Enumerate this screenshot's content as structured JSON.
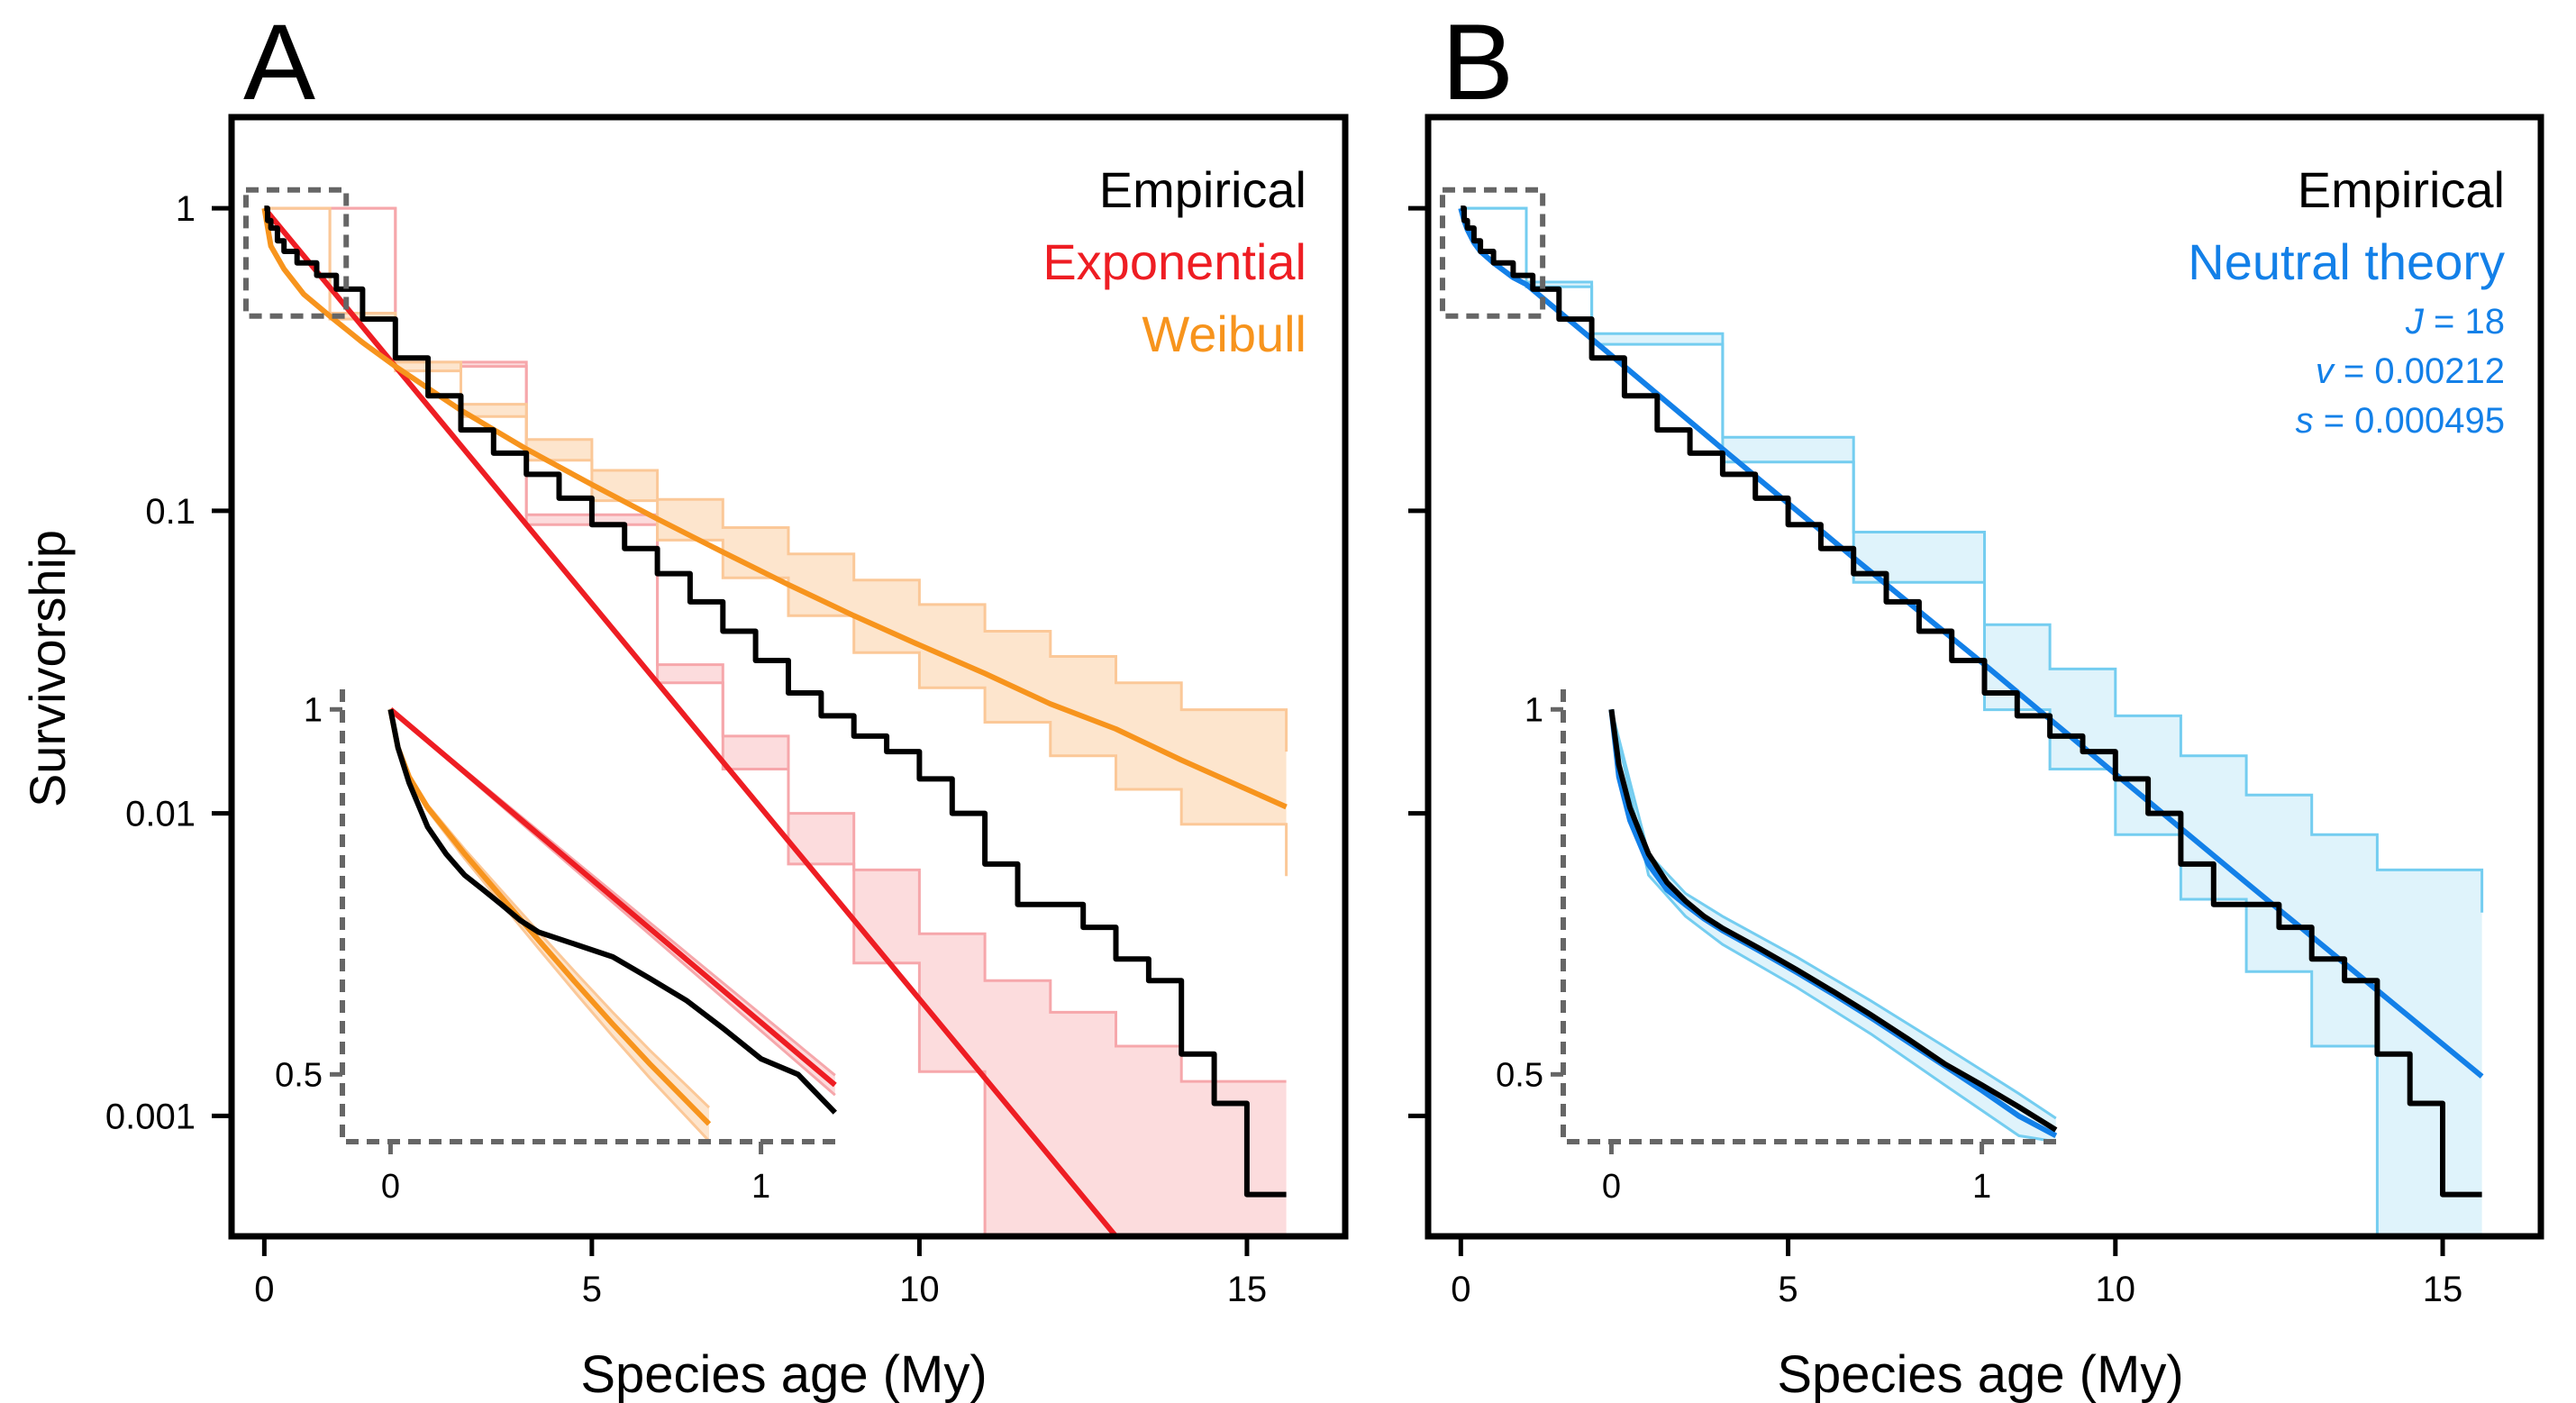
{
  "panels": {
    "a": {
      "letter": "A"
    },
    "b": {
      "letter": "B"
    }
  },
  "colors": {
    "empirical": "#000000",
    "exponential": "#ee1d23",
    "exponential_band": "#fcdcdd",
    "exponential_band_edge": "#f6a7ab",
    "weibull": "#f7941d",
    "weibull_band": "#fde5cd",
    "weibull_band_edge": "#fbc898",
    "neutral": "#1380e8",
    "neutral_band": "#dff3fb",
    "neutral_band_edge": "#74cdf0",
    "inset_frame": "#666666"
  },
  "chart_data": [
    {
      "panel": "A",
      "type": "line",
      "xlabel": "Species age (My)",
      "ylabel": "Survivorship",
      "yscale": "log",
      "xlim": [
        -0.5,
        16.5
      ],
      "ylim": [
        0.0004,
        2.0
      ],
      "xticks": [
        0,
        5,
        10,
        15
      ],
      "xtick_labels": [
        "0",
        "5",
        "10",
        "15"
      ],
      "yticks": [
        1,
        0.1,
        0.01,
        0.001
      ],
      "ytick_labels": [
        "1",
        "0.1",
        "0.01",
        "0.001"
      ],
      "legend": {
        "placement": "top-right",
        "entries": [
          "Empirical",
          "Exponential",
          "Weibull"
        ]
      },
      "series": [
        {
          "name": "Empirical",
          "style": "step",
          "color_key": "empirical",
          "x": [
            0,
            0.05,
            0.1,
            0.2,
            0.3,
            0.5,
            0.8,
            1.1,
            1.5,
            2.0,
            2.5,
            3.0,
            3.5,
            4.0,
            4.5,
            5.0,
            5.5,
            6.0,
            6.5,
            7.0,
            7.5,
            8.0,
            8.5,
            9.0,
            9.5,
            10.0,
            10.5,
            11.0,
            11.5,
            12.0,
            12.5,
            13.0,
            13.5,
            14.0,
            14.5,
            15.0,
            15.6
          ],
          "y": [
            1.0,
            0.91,
            0.86,
            0.78,
            0.72,
            0.66,
            0.6,
            0.54,
            0.43,
            0.32,
            0.24,
            0.185,
            0.155,
            0.132,
            0.11,
            0.09,
            0.075,
            0.062,
            0.05,
            0.04,
            0.032,
            0.025,
            0.021,
            0.018,
            0.016,
            0.013,
            0.01,
            0.0068,
            0.005,
            0.005,
            0.0042,
            0.0033,
            0.0028,
            0.0016,
            0.0011,
            0.00055,
            0.00055
          ]
        },
        {
          "name": "Exponential",
          "style": "line",
          "color_key": "exponential",
          "x": [
            0,
            13.0
          ],
          "y": [
            1.0,
            0.0004
          ]
        },
        {
          "name": "Exponential band",
          "style": "band",
          "color_key": "exponential_band",
          "x": [
            0,
            2,
            4,
            6,
            7,
            8,
            9,
            10,
            11,
            12,
            13,
            14,
            15.6
          ],
          "lower": [
            1.0,
            0.3,
            0.09,
            0.027,
            0.014,
            0.0068,
            0.0032,
            0.0014,
            0.0004,
            0.0004,
            0.0004,
            0.0004,
            0.0004
          ],
          "upper": [
            1.0,
            0.31,
            0.097,
            0.031,
            0.018,
            0.01,
            0.0065,
            0.004,
            0.0028,
            0.0022,
            0.0017,
            0.0013,
            0.0013
          ]
        },
        {
          "name": "Weibull",
          "style": "line",
          "color_key": "weibull",
          "x": [
            0,
            0.1,
            0.3,
            0.6,
            1.0,
            1.5,
            2.0,
            3.0,
            4.0,
            5.0,
            6.0,
            7.0,
            8.0,
            9.0,
            10.0,
            11.0,
            12.0,
            13.0,
            14.0,
            15.6
          ],
          "y": [
            1.0,
            0.75,
            0.63,
            0.52,
            0.44,
            0.36,
            0.3,
            0.215,
            0.16,
            0.122,
            0.094,
            0.073,
            0.057,
            0.045,
            0.036,
            0.029,
            0.023,
            0.019,
            0.015,
            0.0105
          ]
        },
        {
          "name": "Weibull band",
          "style": "band",
          "color_key": "weibull_band",
          "x": [
            0,
            1.0,
            2.0,
            3.0,
            4.0,
            5.0,
            6.0,
            7.0,
            8.0,
            9.0,
            10.0,
            11.0,
            12.0,
            13.0,
            14.0,
            15.6
          ],
          "lower": [
            1.0,
            0.43,
            0.29,
            0.205,
            0.147,
            0.108,
            0.08,
            0.06,
            0.045,
            0.034,
            0.026,
            0.02,
            0.0155,
            0.012,
            0.0092,
            0.0062
          ],
          "upper": [
            1.0,
            0.45,
            0.31,
            0.225,
            0.172,
            0.136,
            0.109,
            0.088,
            0.072,
            0.059,
            0.049,
            0.04,
            0.033,
            0.027,
            0.022,
            0.016
          ]
        }
      ],
      "inset": {
        "xlim": [
          -0.13,
          1.22
        ],
        "ylim": [
          0.44,
          1.03
        ],
        "xticks": [
          0,
          1
        ],
        "xtick_labels": [
          "0",
          "1"
        ],
        "yticks": [
          1,
          0.5
        ],
        "ytick_labels": [
          "1",
          "0.5"
        ],
        "series": [
          {
            "name": "Empirical",
            "color_key": "empirical",
            "x": [
              0,
              0.02,
              0.05,
              0.1,
              0.15,
              0.2,
              0.25,
              0.3,
              0.35,
              0.4,
              0.5,
              0.6,
              0.7,
              0.8,
              0.9,
              1.0,
              1.1,
              1.2
            ],
            "y": [
              1.0,
              0.93,
              0.87,
              0.8,
              0.76,
              0.73,
              0.71,
              0.69,
              0.67,
              0.655,
              0.64,
              0.625,
              0.6,
              0.575,
              0.545,
              0.515,
              0.5,
              0.465
            ]
          },
          {
            "name": "Exponential",
            "color_key": "exponential",
            "x": [
              0,
              1.2
            ],
            "y": [
              1.0,
              0.49
            ]
          },
          {
            "name": "Weibull",
            "color_key": "weibull",
            "x": [
              0,
              0.02,
              0.05,
              0.1,
              0.2,
              0.3,
              0.4,
              0.5,
              0.6,
              0.7,
              0.8,
              0.86
            ],
            "y": [
              1.0,
              0.93,
              0.88,
              0.83,
              0.76,
              0.7,
              0.645,
              0.595,
              0.55,
              0.51,
              0.475,
              0.455
            ]
          }
        ]
      }
    },
    {
      "panel": "B",
      "type": "line",
      "xlabel": "Species age (My)",
      "ylabel": "",
      "yscale": "log",
      "xlim": [
        -0.5,
        16.5
      ],
      "ylim": [
        0.0004,
        2.0
      ],
      "xticks": [
        0,
        5,
        10,
        15
      ],
      "xtick_labels": [
        "0",
        "5",
        "10",
        "15"
      ],
      "yticks": [
        1,
        0.1,
        0.01,
        0.001
      ],
      "ytick_labels": [
        "",
        "",
        "",
        ""
      ],
      "legend": {
        "placement": "top-right",
        "entries": [
          "Empirical",
          "Neutral theory"
        ]
      },
      "parameters": [
        {
          "symbol": "J",
          "value": " = 18"
        },
        {
          "symbol": "v",
          "value": " = 0.00212"
        },
        {
          "symbol": "s",
          "value": " = 0.000495"
        }
      ],
      "series": [
        {
          "name": "Empirical",
          "style": "step",
          "color_key": "empirical",
          "x": [
            0,
            0.05,
            0.1,
            0.2,
            0.3,
            0.5,
            0.8,
            1.1,
            1.5,
            2.0,
            2.5,
            3.0,
            3.5,
            4.0,
            4.5,
            5.0,
            5.5,
            6.0,
            6.5,
            7.0,
            7.5,
            8.0,
            8.5,
            9.0,
            9.5,
            10.0,
            10.5,
            11.0,
            11.5,
            12.0,
            12.5,
            13.0,
            13.5,
            14.0,
            14.5,
            15.0,
            15.6
          ],
          "y": [
            1.0,
            0.91,
            0.86,
            0.78,
            0.72,
            0.66,
            0.6,
            0.54,
            0.43,
            0.32,
            0.24,
            0.185,
            0.155,
            0.132,
            0.11,
            0.09,
            0.075,
            0.062,
            0.05,
            0.04,
            0.032,
            0.025,
            0.021,
            0.018,
            0.016,
            0.013,
            0.01,
            0.0068,
            0.005,
            0.005,
            0.0042,
            0.0033,
            0.0028,
            0.0016,
            0.0011,
            0.00055,
            0.00055
          ]
        },
        {
          "name": "Neutral theory",
          "style": "line",
          "color_key": "neutral",
          "x": [
            0,
            0.05,
            0.1,
            0.2,
            0.3,
            0.5,
            0.8,
            1.0,
            2,
            4,
            6,
            8,
            10,
            12,
            14,
            15.6
          ],
          "y": [
            1.0,
            0.91,
            0.85,
            0.77,
            0.72,
            0.66,
            0.59,
            0.56,
            0.37,
            0.16,
            0.07,
            0.031,
            0.0135,
            0.0059,
            0.0026,
            0.00135
          ]
        },
        {
          "name": "Neutral theory band",
          "style": "band",
          "color_key": "neutral_band",
          "x": [
            0,
            1.0,
            2,
            4,
            6,
            8,
            9,
            10,
            11,
            12,
            13,
            14,
            15.6
          ],
          "lower": [
            1.0,
            0.55,
            0.355,
            0.145,
            0.058,
            0.022,
            0.014,
            0.0085,
            0.0052,
            0.003,
            0.0017,
            0.0004,
            0.0004
          ],
          "upper": [
            1.0,
            0.57,
            0.385,
            0.175,
            0.085,
            0.042,
            0.03,
            0.021,
            0.0155,
            0.0115,
            0.0085,
            0.0065,
            0.0047
          ]
        }
      ],
      "inset": {
        "xlim": [
          -0.13,
          1.22
        ],
        "ylim": [
          0.44,
          1.03
        ],
        "xticks": [
          0,
          1
        ],
        "xtick_labels": [
          "0",
          "1"
        ],
        "yticks": [
          1,
          0.5
        ],
        "ytick_labels": [
          "1",
          "0.5"
        ],
        "series": [
          {
            "name": "Empirical",
            "color_key": "empirical",
            "x": [
              0,
              0.02,
              0.05,
              0.1,
              0.15,
              0.2,
              0.25,
              0.3,
              0.4,
              0.5,
              0.6,
              0.7,
              0.8,
              0.9,
              1.0,
              1.1,
              1.2
            ],
            "y": [
              1.0,
              0.9,
              0.83,
              0.76,
              0.72,
              0.695,
              0.675,
              0.66,
              0.635,
              0.61,
              0.585,
              0.56,
              0.535,
              0.51,
              0.49,
              0.47,
              0.45
            ]
          },
          {
            "name": "Neutral theory",
            "color_key": "neutral",
            "x": [
              0,
              0.02,
              0.05,
              0.1,
              0.15,
              0.2,
              0.25,
              0.3,
              0.4,
              0.5,
              0.6,
              0.7,
              0.8,
              0.9,
              1.0,
              1.1,
              1.2
            ],
            "y": [
              1.0,
              0.88,
              0.81,
              0.745,
              0.71,
              0.69,
              0.672,
              0.657,
              0.632,
              0.607,
              0.582,
              0.557,
              0.532,
              0.508,
              0.485,
              0.462,
              0.445
            ]
          },
          {
            "name": "Neutral theory band",
            "color_key": "neutral_band",
            "x": [
              0,
              0.1,
              0.2,
              0.3,
              0.5,
              0.7,
              0.9,
              1.1,
              1.2
            ],
            "lower": [
              1.0,
              0.73,
              0.675,
              0.64,
              0.59,
              0.54,
              0.49,
              0.445,
              0.44
            ],
            "upper": [
              1.0,
              0.76,
              0.705,
              0.675,
              0.625,
              0.575,
              0.527,
              0.482,
              0.46
            ]
          }
        ]
      }
    }
  ]
}
